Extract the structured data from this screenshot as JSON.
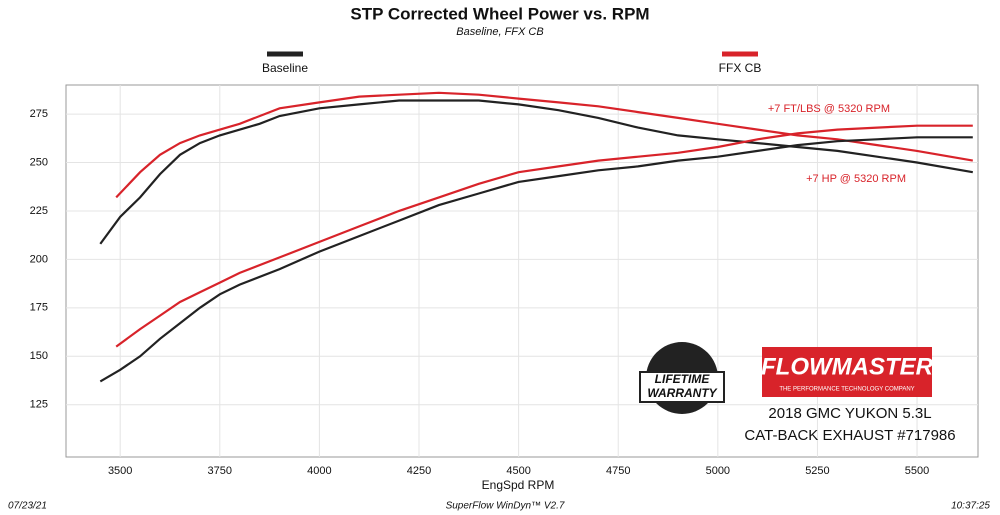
{
  "chart_data": {
    "type": "line",
    "title": "STP Corrected Wheel Power vs. RPM",
    "subtitle": "Baseline, FFX CB",
    "x_label": "EngSpd  RPM",
    "xlim": [
      3364,
      5653
    ],
    "ylim": [
      98,
      290
    ],
    "xticks": [
      3500,
      3750,
      4000,
      4250,
      4500,
      4750,
      5000,
      5250,
      5500
    ],
    "yticks": [
      125,
      150,
      175,
      200,
      225,
      250,
      275
    ],
    "grid": true,
    "series": [
      {
        "name": "Baseline",
        "color": "#222222",
        "x": [
          3450,
          3500,
          3550,
          3600,
          3650,
          3700,
          3750,
          3850,
          3900,
          4000,
          4100,
          4200,
          4300,
          4400,
          4500,
          4600,
          4700,
          4800,
          4900,
          5000,
          5100,
          5200,
          5300,
          5400,
          5500,
          5640
        ],
        "values": [
          208,
          222,
          232,
          244,
          254,
          260,
          264,
          270,
          274,
          278,
          280,
          282,
          282,
          282,
          280,
          277,
          273,
          268,
          264,
          262,
          260,
          258,
          256,
          253,
          250,
          245
        ]
      },
      {
        "name": "FFX CB",
        "color": "#d8232a",
        "x": [
          3490,
          3550,
          3600,
          3650,
          3700,
          3800,
          3900,
          4000,
          4100,
          4200,
          4300,
          4400,
          4500,
          4600,
          4700,
          4800,
          4900,
          5000,
          5100,
          5200,
          5300,
          5400,
          5500,
          5640
        ],
        "values": [
          232,
          245,
          254,
          260,
          264,
          270,
          278,
          281,
          284,
          285,
          286,
          285,
          283,
          281,
          279,
          276,
          273,
          270,
          267,
          264,
          262,
          259,
          256,
          251
        ]
      },
      {
        "color": "#222222",
        "x": [
          3450,
          3500,
          3550,
          3600,
          3650,
          3700,
          3750,
          3800,
          3900,
          4000,
          4100,
          4200,
          4300,
          4400,
          4500,
          4600,
          4700,
          4800,
          4900,
          5000,
          5100,
          5200,
          5300,
          5400,
          5500,
          5640
        ],
        "values": [
          137,
          143,
          150,
          159,
          167,
          175,
          182,
          187,
          195,
          204,
          212,
          220,
          228,
          234,
          240,
          243,
          246,
          248,
          251,
          253,
          256,
          259,
          261,
          262,
          263,
          263
        ]
      },
      {
        "color": "#d8232a",
        "x": [
          3490,
          3550,
          3600,
          3650,
          3700,
          3750,
          3800,
          3900,
          4000,
          4100,
          4200,
          4300,
          4400,
          4500,
          4600,
          4700,
          4800,
          4900,
          5000,
          5100,
          5200,
          5300,
          5400,
          5500,
          5640
        ],
        "values": [
          155,
          164,
          171,
          178,
          183,
          188,
          193,
          201,
          209,
          217,
          225,
          232,
          239,
          245,
          248,
          251,
          253,
          255,
          258,
          262,
          265,
          267,
          268,
          269,
          269
        ]
      }
    ],
    "annotations": [
      "+7 FT/LBS @ 5320 RPM",
      "+7 HP @ 5320 RPM"
    ],
    "logo": {
      "brand": "FLOWMASTER",
      "tagline": "THE PERFORMANCE TECHNOLOGY COMPANY",
      "badge": [
        "LIFETIME",
        "WARRANTY"
      ]
    },
    "vehicle": [
      "2018 GMC YUKON 5.3L",
      "CAT-BACK EXHAUST #717986"
    ],
    "footer": {
      "date": "07/23/21",
      "software": "SuperFlow WinDyn™ V2.7",
      "time": "10:37:25"
    }
  }
}
